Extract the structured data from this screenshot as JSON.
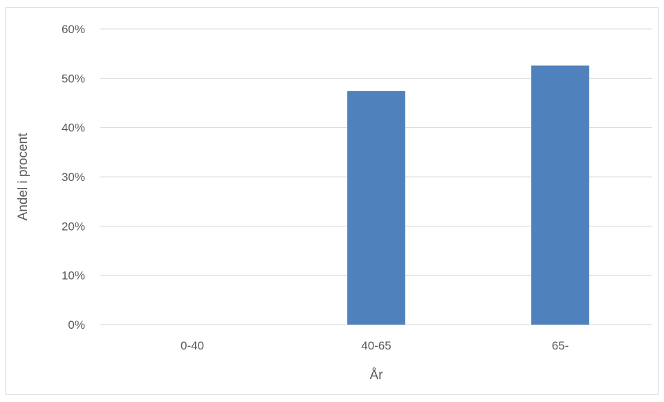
{
  "chart_data": {
    "type": "bar",
    "categories": [
      "0-40",
      "40-65",
      "65-"
    ],
    "values": [
      0,
      47.4,
      52.6
    ],
    "title": "",
    "xlabel": "År",
    "ylabel": "Andel i procent",
    "ylim": [
      0,
      60
    ],
    "yticks": [
      0,
      10,
      20,
      30,
      40,
      50,
      60
    ],
    "ytick_format": "{v}%",
    "grid": true,
    "legend": "none",
    "colors": {
      "bar": "#4f81bd",
      "grid": "#d9d9d9",
      "text": "#595959"
    }
  }
}
